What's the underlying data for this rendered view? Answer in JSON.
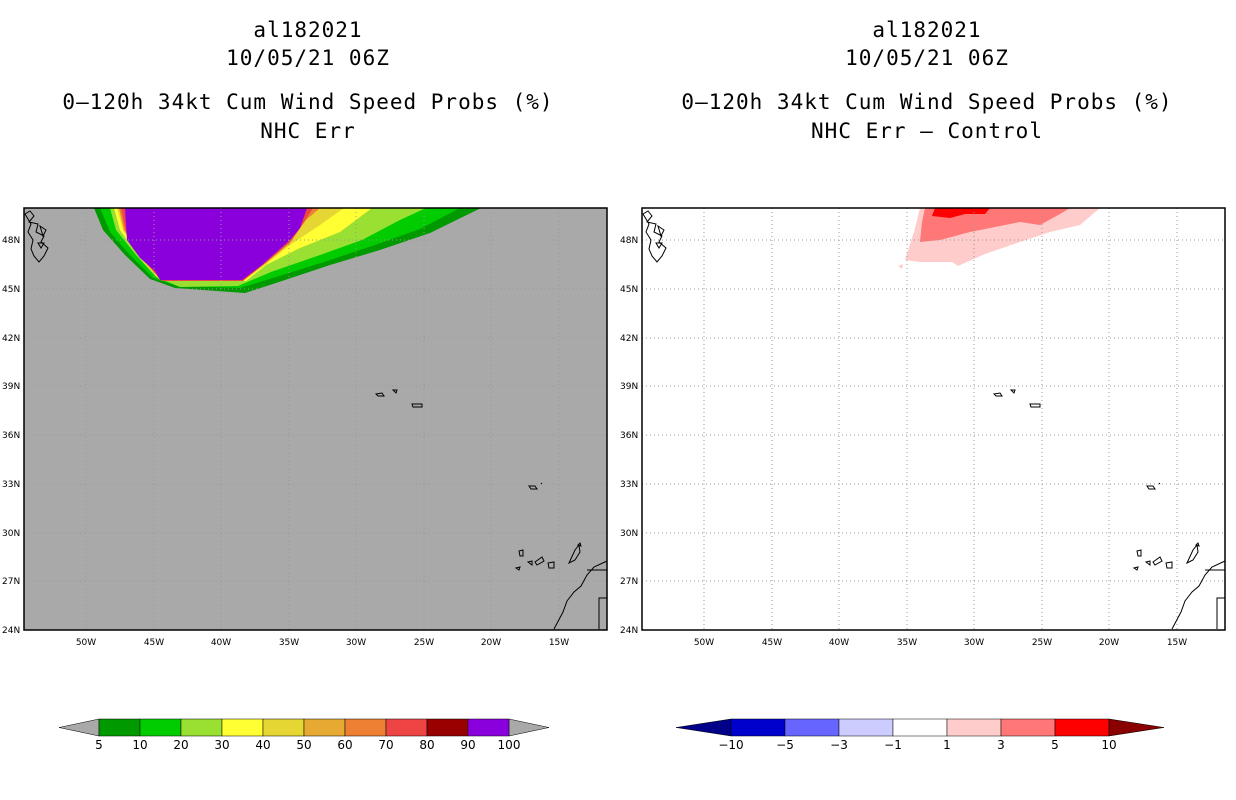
{
  "left_panel": {
    "storm_id": "al182021",
    "datetime": "10/05/21 06Z",
    "product": "0–120h 34kt Cum Wind Speed Probs (%)",
    "subtitle": "NHC Err"
  },
  "right_panel": {
    "storm_id": "al182021",
    "datetime": "10/05/21 06Z",
    "product": "0–120h 34kt Cum Wind Speed Probs (%)",
    "subtitle": "NHC Err – Control"
  },
  "map": {
    "lat_labels": [
      "48N",
      "45N",
      "42N",
      "39N",
      "36N",
      "33N",
      "30N",
      "27N",
      "24N"
    ],
    "lon_labels": [
      "50W",
      "45W",
      "40W",
      "35W",
      "30W",
      "25W",
      "20W",
      "15W"
    ],
    "land_color": "#a9a9a9",
    "ocean_diff_color": "#ffffff"
  },
  "left_colorbar": {
    "labels": [
      "5",
      "10",
      "20",
      "30",
      "40",
      "50",
      "60",
      "70",
      "80",
      "90",
      "100"
    ],
    "colors": [
      "#009900",
      "#00cc00",
      "#99e033",
      "#ffff33",
      "#e6d633",
      "#e6aa33",
      "#ee8033",
      "#ee4444",
      "#990000",
      "#8a00dd"
    ],
    "end_color": "#a9a9a9"
  },
  "right_colorbar": {
    "labels": [
      "−10",
      "−5",
      "−3",
      "−1",
      "1",
      "3",
      "5",
      "10"
    ],
    "colors": [
      "#0000cc",
      "#6666ff",
      "#ccccff",
      "#ffffff",
      "#ffcccc",
      "#ff7777",
      "#ff0000"
    ],
    "low_end_color": "#000088",
    "high_end_color": "#880000"
  }
}
